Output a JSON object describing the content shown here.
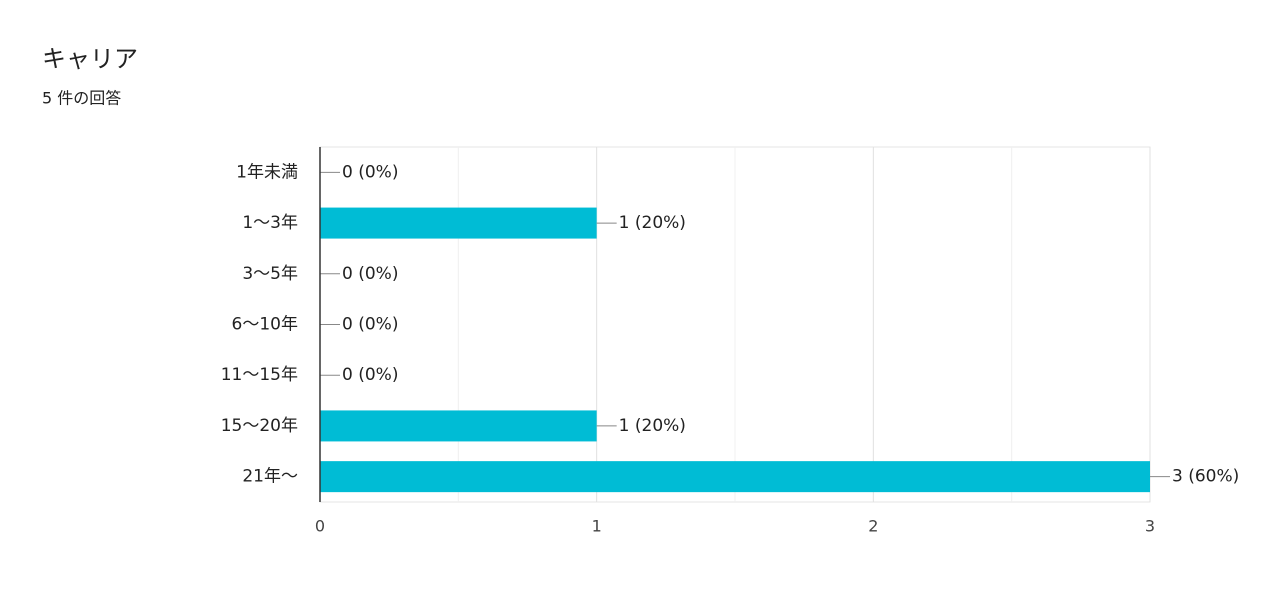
{
  "chart_data": {
    "type": "bar",
    "orientation": "horizontal",
    "title": "キャリア",
    "subtitle": "5 件の回答",
    "categories": [
      "1年未満",
      "1〜3年",
      "3〜5年",
      "6〜10年",
      "11〜15年",
      "15〜20年",
      "21年〜"
    ],
    "values": [
      0,
      1,
      0,
      0,
      0,
      1,
      3
    ],
    "value_labels": [
      "0 (0%)",
      "1 (20%)",
      "0 (0%)",
      "0 (0%)",
      "0 (0%)",
      "1 (20%)",
      "3 (60%)"
    ],
    "color": "#00bcd5",
    "xlim": [
      0,
      3
    ],
    "xticks": [
      0,
      1,
      2,
      3
    ],
    "minor_grid": [
      0.5,
      1.5,
      2.5
    ],
    "grid": true
  }
}
